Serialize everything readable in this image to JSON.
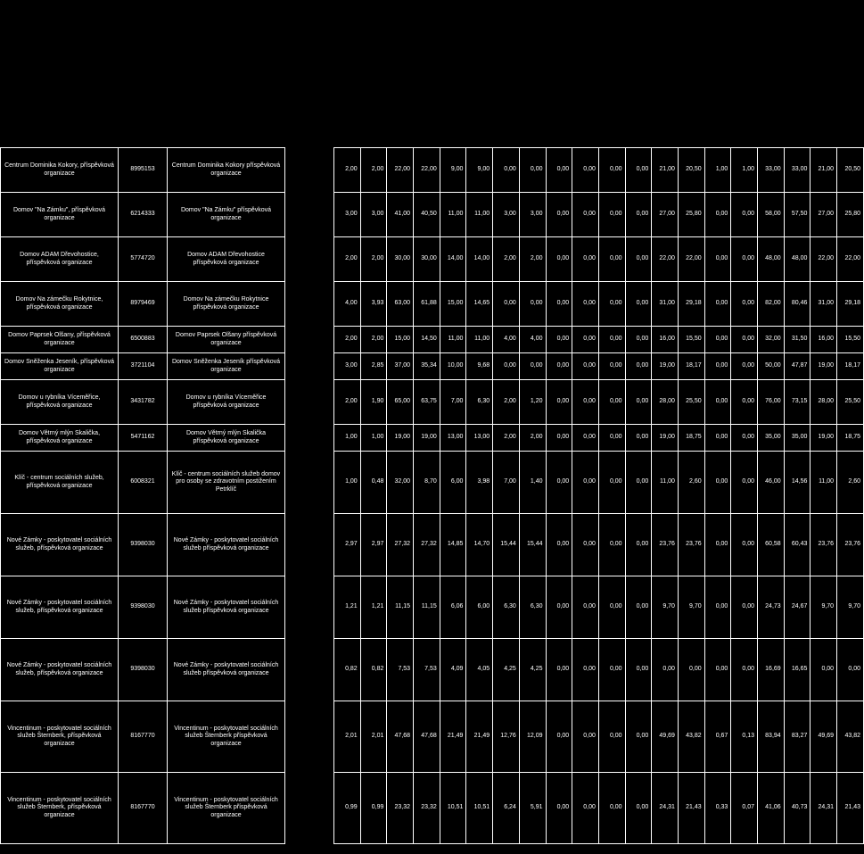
{
  "table": {
    "columns": {
      "name_width": 120,
      "id_width": 50,
      "desc_width": 120,
      "gap_width": 10,
      "num_width": 27
    },
    "colors": {
      "background": "#000000",
      "text": "#ffffff",
      "border": "#ffffff"
    },
    "rows": [
      {
        "height": "tall",
        "name": "Centrum Dominika Kokory, příspěvková organizace",
        "id": "8995153",
        "desc": "Centrum Dominika Kokory příspěvková organizace",
        "vals": [
          "2,00",
          "2,00",
          "22,00",
          "22,00",
          "9,00",
          "9,00",
          "0,00",
          "0,00",
          "0,00",
          "0,00",
          "0,00",
          "0,00",
          "21,00",
          "20,50",
          "1,00",
          "1,00",
          "33,00",
          "33,00",
          "21,00",
          "20,50"
        ]
      },
      {
        "height": "tall",
        "name": "Domov \"Na Zámku\", příspěvková organizace",
        "id": "6214333",
        "desc": "Domov \"Na Zámku\" příspěvková organizace",
        "vals": [
          "3,00",
          "3,00",
          "41,00",
          "40,50",
          "11,00",
          "11,00",
          "3,00",
          "3,00",
          "0,00",
          "0,00",
          "0,00",
          "0,00",
          "27,00",
          "25,80",
          "0,00",
          "0,00",
          "58,00",
          "57,50",
          "27,00",
          "25,80"
        ]
      },
      {
        "height": "tall",
        "name": "Domov ADAM Dřevohostice, příspěvková organizace",
        "id": "5774720",
        "desc": "Domov ADAM Dřevohostice příspěvková organizace",
        "vals": [
          "2,00",
          "2,00",
          "30,00",
          "30,00",
          "14,00",
          "14,00",
          "2,00",
          "2,00",
          "0,00",
          "0,00",
          "0,00",
          "0,00",
          "22,00",
          "22,00",
          "0,00",
          "0,00",
          "48,00",
          "48,00",
          "22,00",
          "22,00"
        ]
      },
      {
        "height": "tall",
        "name": "Domov Na zámečku Rokytnice, příspěvková organizace",
        "id": "8979469",
        "desc": "Domov Na zámečku Rokytnice příspěvková organizace",
        "vals": [
          "4,00",
          "3,93",
          "63,00",
          "61,88",
          "15,00",
          "14,65",
          "0,00",
          "0,00",
          "0,00",
          "0,00",
          "0,00",
          "0,00",
          "31,00",
          "29,18",
          "0,00",
          "0,00",
          "82,00",
          "80,46",
          "31,00",
          "29,18"
        ]
      },
      {
        "height": "short",
        "name": "Domov Paprsek Olšany, příspěvková organizace",
        "id": "6500883",
        "desc": "Domov Paprsek Olšany příspěvková organizace",
        "vals": [
          "2,00",
          "2,00",
          "15,00",
          "14,50",
          "11,00",
          "11,00",
          "4,00",
          "4,00",
          "0,00",
          "0,00",
          "0,00",
          "0,00",
          "16,00",
          "15,50",
          "0,00",
          "0,00",
          "32,00",
          "31,50",
          "16,00",
          "15,50"
        ]
      },
      {
        "height": "short",
        "name": "Domov Sněženka Jeseník, příspěvková organizace",
        "id": "3721104",
        "desc": "Domov Sněženka Jeseník příspěvková organizace",
        "vals": [
          "3,00",
          "2,85",
          "37,00",
          "35,34",
          "10,00",
          "9,68",
          "0,00",
          "0,00",
          "0,00",
          "0,00",
          "0,00",
          "0,00",
          "19,00",
          "18,17",
          "0,00",
          "0,00",
          "50,00",
          "47,87",
          "19,00",
          "18,17"
        ]
      },
      {
        "height": "tall",
        "name": "Domov u rybníka Víceměřice, příspěvková organizace",
        "id": "3431782",
        "desc": "Domov u rybníka Víceměřice příspěvková organizace",
        "vals": [
          "2,00",
          "1,90",
          "65,00",
          "63,75",
          "7,00",
          "6,30",
          "2,00",
          "1,20",
          "0,00",
          "0,00",
          "0,00",
          "0,00",
          "28,00",
          "25,50",
          "0,00",
          "0,00",
          "76,00",
          "73,15",
          "28,00",
          "25,50"
        ]
      },
      {
        "height": "short",
        "name": "Domov Větrný mlýn Skalička, příspěvková organizace",
        "id": "5471162",
        "desc": "Domov Větrný mlýn Skalička příspěvková organizace",
        "vals": [
          "1,00",
          "1,00",
          "19,00",
          "19,00",
          "13,00",
          "13,00",
          "2,00",
          "2,00",
          "0,00",
          "0,00",
          "0,00",
          "0,00",
          "19,00",
          "18,75",
          "0,00",
          "0,00",
          "35,00",
          "35,00",
          "19,00",
          "18,75"
        ]
      },
      {
        "height": "vtall",
        "name": "Klíč - centrum sociálních služeb, příspěvková organizace",
        "id": "6008321",
        "desc": "Klíč - centrum sociálních služeb domov pro osoby se zdravotním postižením Petrklíč",
        "vals": [
          "1,00",
          "0,48",
          "32,00",
          "8,70",
          "6,00",
          "3,98",
          "7,00",
          "1,40",
          "0,00",
          "0,00",
          "0,00",
          "0,00",
          "11,00",
          "2,60",
          "0,00",
          "0,00",
          "46,00",
          "14,56",
          "11,00",
          "2,60"
        ]
      },
      {
        "height": "vtall",
        "name": "Nové Zámky - poskytovatel sociálních služeb, příspěvková organizace",
        "id": "9398030",
        "desc": "Nové Zámky - poskytovatel sociálních služeb příspěvková organizace",
        "vals": [
          "2,97",
          "2,97",
          "27,32",
          "27,32",
          "14,85",
          "14,70",
          "15,44",
          "15,44",
          "0,00",
          "0,00",
          "0,00",
          "0,00",
          "23,76",
          "23,76",
          "0,00",
          "0,00",
          "60,58",
          "60,43",
          "23,76",
          "23,76"
        ]
      },
      {
        "height": "vtall",
        "name": "Nové Zámky - poskytovatel sociálních služeb, příspěvková organizace",
        "id": "9398030",
        "desc": "Nové Zámky - poskytovatel sociálních služeb příspěvková organizace",
        "vals": [
          "1,21",
          "1,21",
          "11,15",
          "11,15",
          "6,06",
          "6,00",
          "6,30",
          "6,30",
          "0,00",
          "0,00",
          "0,00",
          "0,00",
          "9,70",
          "9,70",
          "0,00",
          "0,00",
          "24,73",
          "24,67",
          "9,70",
          "9,70"
        ]
      },
      {
        "height": "vtall",
        "name": "Nové Zámky - poskytovatel sociálních služeb, příspěvková organizace",
        "id": "9398030",
        "desc": "Nové Zámky - poskytovatel sociálních služeb příspěvková organizace",
        "vals": [
          "0,82",
          "0,82",
          "7,53",
          "7,53",
          "4,09",
          "4,05",
          "4,25",
          "4,25",
          "0,00",
          "0,00",
          "0,00",
          "0,00",
          "0,00",
          "0,00",
          "0,00",
          "0,00",
          "16,69",
          "16,65",
          "0,00",
          "0,00"
        ]
      },
      {
        "height": "xtall",
        "name": "Vincentinum - poskytovatel sociálních služeb Šternberk, příspěvková organizace",
        "id": "8167770",
        "desc": "Vincentinum - poskytovatel sociálních služeb Šternberk příspěvková organizace",
        "vals": [
          "2,01",
          "2,01",
          "47,68",
          "47,68",
          "21,49",
          "21,49",
          "12,76",
          "12,09",
          "0,00",
          "0,00",
          "0,00",
          "0,00",
          "49,69",
          "43,82",
          "0,67",
          "0,13",
          "83,94",
          "83,27",
          "49,69",
          "43,82"
        ]
      },
      {
        "height": "xtall",
        "name": "Vincentinum - poskytovatel sociálních služeb Šternberk, příspěvková organizace",
        "id": "8167770",
        "desc": "Vincentinum - poskytovatel sociálních služeb Šternberk příspěvková organizace",
        "vals": [
          "0,99",
          "0,99",
          "23,32",
          "23,32",
          "10,51",
          "10,51",
          "6,24",
          "5,91",
          "0,00",
          "0,00",
          "0,00",
          "0,00",
          "24,31",
          "21,43",
          "0,33",
          "0,07",
          "41,06",
          "40,73",
          "24,31",
          "21,43"
        ]
      }
    ]
  }
}
